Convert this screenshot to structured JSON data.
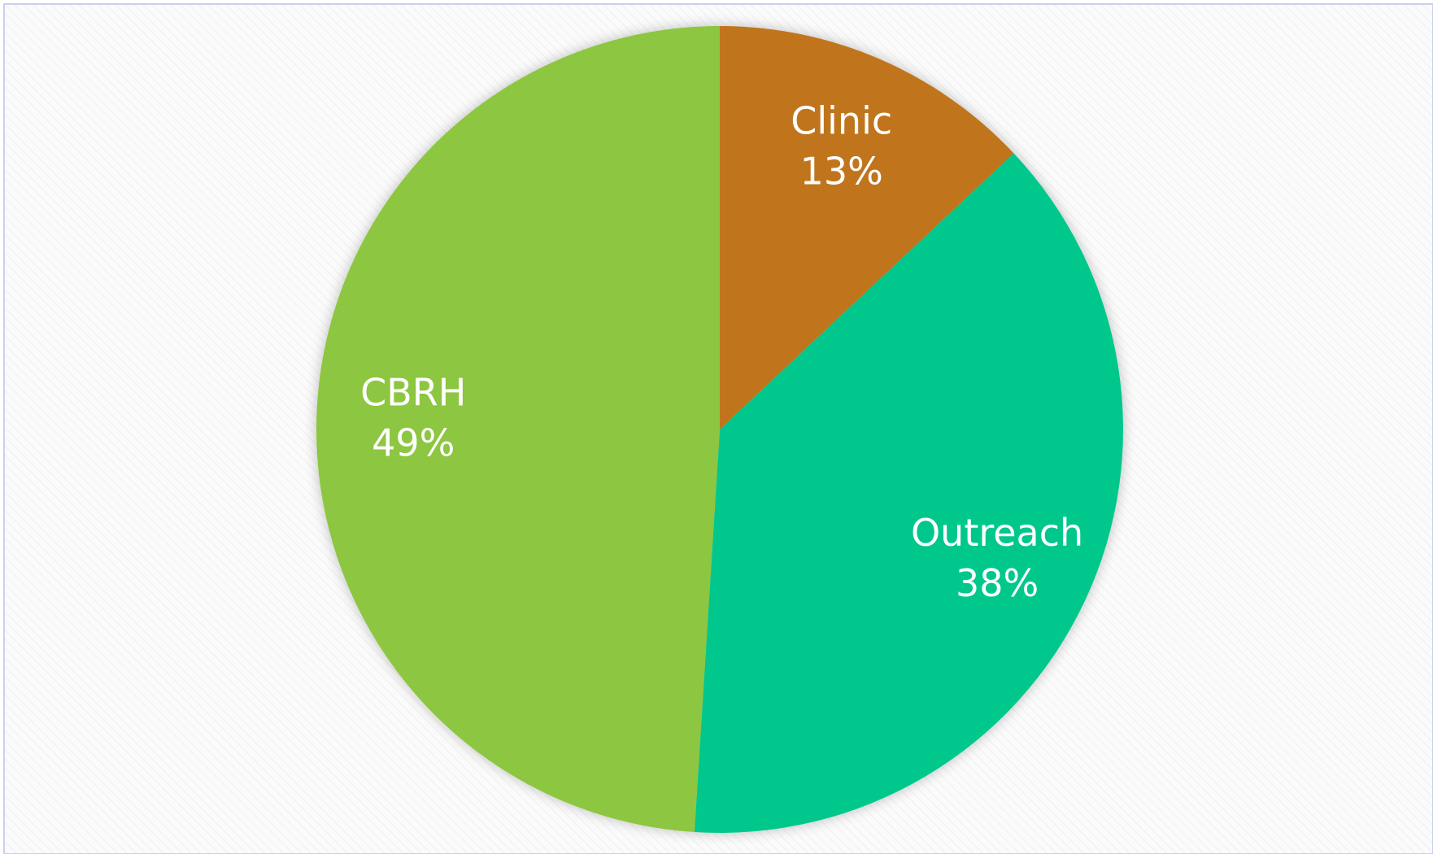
{
  "chart_data": {
    "type": "pie",
    "categories": [
      "Clinic",
      "Outreach",
      "CBRH"
    ],
    "values": [
      13,
      38,
      49
    ],
    "value_labels": [
      "13%",
      "38%",
      "49%"
    ],
    "colors": [
      "#c0741e",
      "#00c78c",
      "#8dc641"
    ]
  }
}
